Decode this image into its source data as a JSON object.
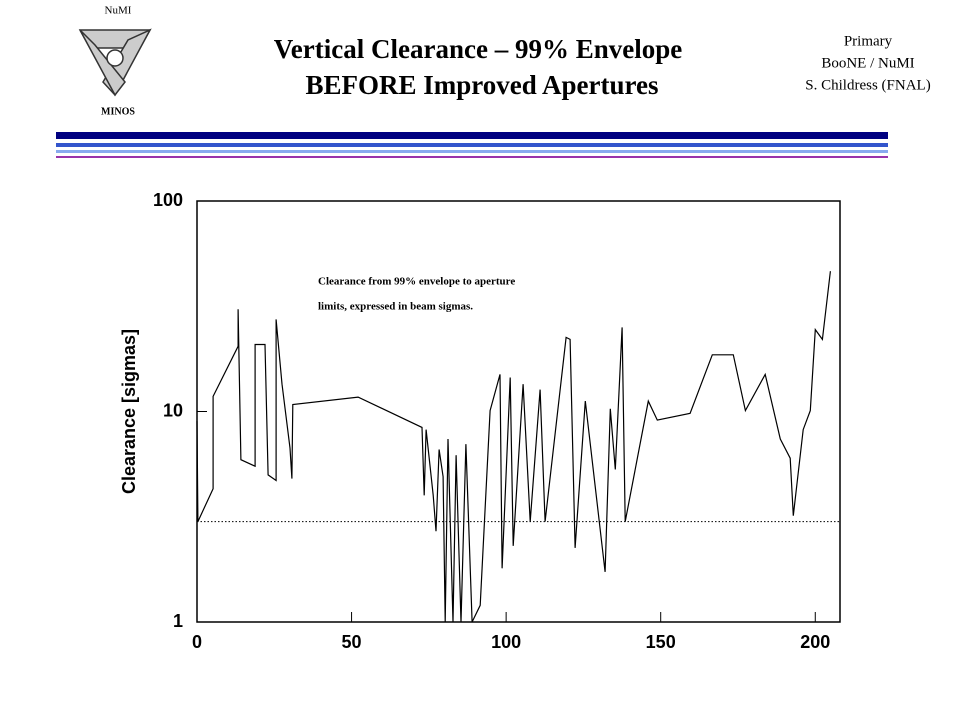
{
  "header": {
    "logo_top": "NuMI",
    "logo_bottom": "MINOS",
    "title": [
      "Vertical Clearance – 99% Envelope",
      "BEFORE Improved Apertures"
    ],
    "info": [
      "Primary",
      "BooNE / NuMI",
      "S. Childress (FNAL)"
    ]
  },
  "chart_data": {
    "type": "line",
    "ylabel": "Clearance [sigmas]",
    "annotation": [
      "Clearance from 99% envelope to aperture",
      "limits, expressed in beam sigmas."
    ],
    "x": [
      0,
      0.3,
      5.2,
      5.2,
      13.3,
      13.3,
      14.2,
      18.8,
      18.8,
      22,
      23,
      25.6,
      25.6,
      27.5,
      30.1,
      30.7,
      31,
      52.1,
      72.8,
      73.5,
      74.1,
      76.4,
      77.3,
      78.3,
      79.6,
      80.3,
      81.2,
      82.8,
      83.8,
      85.4,
      87,
      89,
      91.6,
      94.8,
      98,
      98.7,
      101.3,
      102.3,
      105.5,
      107.8,
      111,
      112.6,
      119.4,
      120.7,
      122.3,
      125.6,
      132,
      133.7,
      135.3,
      137.5,
      138.5,
      146,
      148.9,
      159.5,
      166.7,
      173.5,
      177.4,
      183.8,
      188.7,
      191.9,
      192.9,
      196.1,
      198.4,
      200,
      202.3,
      204.9
    ],
    "values": [
      9.0,
      3.0,
      4.3,
      11.8,
      20.4,
      30.6,
      5.9,
      5.5,
      20.8,
      20.8,
      5.0,
      4.7,
      27.4,
      13.5,
      6.7,
      4.8,
      10.8,
      11.7,
      8.4,
      4.0,
      8.2,
      4.0,
      2.7,
      6.6,
      4.9,
      1.0,
      7.4,
      1.0,
      6.2,
      1.0,
      7.0,
      1.0,
      1.2,
      10.1,
      15,
      1.8,
      14.5,
      2.3,
      13.5,
      3.0,
      12.7,
      3.0,
      22.5,
      22,
      2.25,
      11.2,
      1.73,
      10.3,
      5.3,
      25.1,
      3.0,
      11.2,
      9.1,
      9.8,
      18.6,
      18.6,
      10.1,
      15,
      7.4,
      6.0,
      3.2,
      8.2,
      10.1,
      24.5,
      22,
      46.4
    ],
    "color": "#000000",
    "hline": 3,
    "log_y": true,
    "xlim": [
      0,
      208
    ],
    "ylim": [
      1,
      100
    ],
    "xticks": [
      0,
      50,
      100,
      150,
      200
    ],
    "yticks": [
      1,
      10,
      100
    ]
  }
}
